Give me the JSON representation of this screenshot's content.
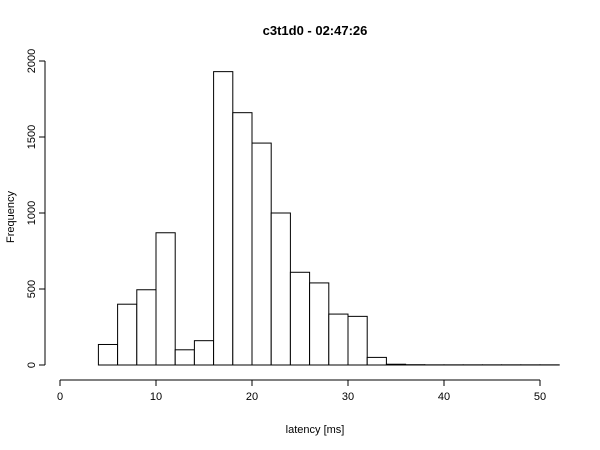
{
  "chart_data": {
    "type": "bar",
    "title": "c3t1d0 - 02:47:26",
    "xlabel": "latency [ms]",
    "ylabel": "Frequency",
    "xlim": [
      0,
      52
    ],
    "ylim": [
      0,
      2000
    ],
    "x_ticks": [
      0,
      10,
      20,
      30,
      40,
      50
    ],
    "y_ticks": [
      0,
      500,
      1000,
      1500,
      2000
    ],
    "grid": false,
    "bins": [
      {
        "x0": 2,
        "x1": 4,
        "value": 0
      },
      {
        "x0": 4,
        "x1": 6,
        "value": 135
      },
      {
        "x0": 6,
        "x1": 8,
        "value": 400
      },
      {
        "x0": 8,
        "x1": 10,
        "value": 495
      },
      {
        "x0": 10,
        "x1": 12,
        "value": 870
      },
      {
        "x0": 12,
        "x1": 14,
        "value": 100
      },
      {
        "x0": 14,
        "x1": 16,
        "value": 160
      },
      {
        "x0": 16,
        "x1": 18,
        "value": 1930
      },
      {
        "x0": 18,
        "x1": 20,
        "value": 1660
      },
      {
        "x0": 20,
        "x1": 22,
        "value": 1460
      },
      {
        "x0": 22,
        "x1": 24,
        "value": 1000
      },
      {
        "x0": 24,
        "x1": 26,
        "value": 610
      },
      {
        "x0": 26,
        "x1": 28,
        "value": 540
      },
      {
        "x0": 28,
        "x1": 30,
        "value": 335
      },
      {
        "x0": 30,
        "x1": 32,
        "value": 320
      },
      {
        "x0": 32,
        "x1": 34,
        "value": 50
      },
      {
        "x0": 34,
        "x1": 36,
        "value": 5
      },
      {
        "x0": 36,
        "x1": 38,
        "value": 2
      },
      {
        "x0": 38,
        "x1": 40,
        "value": 1
      },
      {
        "x0": 40,
        "x1": 42,
        "value": 1
      },
      {
        "x0": 42,
        "x1": 44,
        "value": 1
      },
      {
        "x0": 44,
        "x1": 46,
        "value": 1
      },
      {
        "x0": 46,
        "x1": 48,
        "value": 1
      },
      {
        "x0": 48,
        "x1": 50,
        "value": 1
      },
      {
        "x0": 50,
        "x1": 52,
        "value": 1
      }
    ]
  }
}
